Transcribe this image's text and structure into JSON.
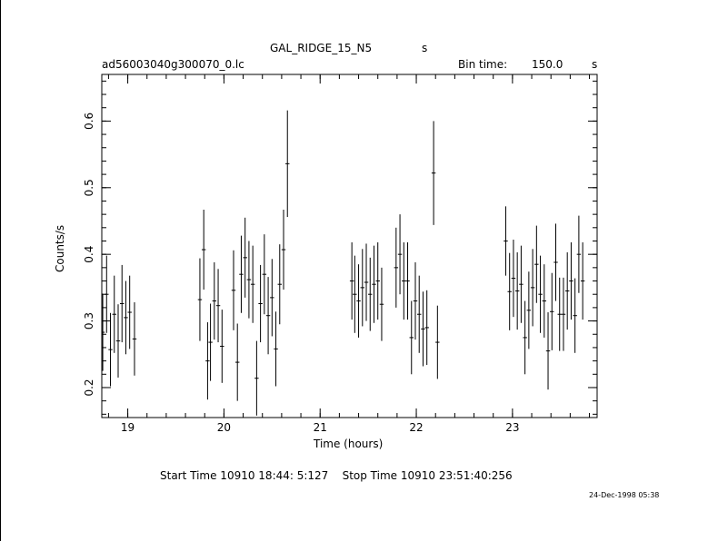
{
  "header": {
    "object": "GAL_RIDGE_15_N5",
    "object_unit": "s",
    "filename": "ad56003040g300070_0.lc",
    "bin_label": "Bin time:",
    "bin_value": "150.0",
    "bin_unit": "s"
  },
  "footer": {
    "times": "Start Time 10910 18:44: 5:127    Stop Time 10910 23:51:40:256",
    "stamp": "24-Dec-1998 05:38"
  },
  "chart_data": {
    "type": "scatter",
    "xlabel": "Time (hours)",
    "ylabel": "Counts/s",
    "xlim": [
      18.73,
      23.88
    ],
    "ylim": [
      0.155,
      0.67
    ],
    "xticks": [
      19,
      20,
      21,
      22,
      23
    ],
    "yticks": [
      0.2,
      0.3,
      0.4,
      0.5,
      0.6
    ],
    "xerr": 0.021,
    "series": [
      {
        "points": [
          [
            18.74,
            0.283,
            0.058
          ],
          [
            18.78,
            0.34,
            0.058
          ],
          [
            18.82,
            0.257,
            0.055
          ],
          [
            18.86,
            0.31,
            0.058
          ],
          [
            18.9,
            0.27,
            0.055
          ],
          [
            18.94,
            0.326,
            0.058
          ],
          [
            18.98,
            0.305,
            0.055
          ],
          [
            19.02,
            0.313,
            0.055
          ],
          [
            19.07,
            0.273,
            0.055
          ],
          [
            19.75,
            0.332,
            0.062
          ],
          [
            19.79,
            0.407,
            0.06
          ],
          [
            19.83,
            0.24,
            0.058
          ],
          [
            19.86,
            0.268,
            0.058
          ],
          [
            19.9,
            0.33,
            0.058
          ],
          [
            19.94,
            0.323,
            0.055
          ],
          [
            19.98,
            0.262,
            0.055
          ],
          [
            20.1,
            0.346,
            0.06
          ],
          [
            20.14,
            0.238,
            0.058
          ],
          [
            20.18,
            0.37,
            0.058
          ],
          [
            20.22,
            0.395,
            0.06
          ],
          [
            20.26,
            0.362,
            0.058
          ],
          [
            20.3,
            0.355,
            0.058
          ],
          [
            20.34,
            0.214,
            0.056
          ],
          [
            20.38,
            0.326,
            0.058
          ],
          [
            20.42,
            0.37,
            0.06
          ],
          [
            20.46,
            0.308,
            0.058
          ],
          [
            20.5,
            0.335,
            0.058
          ],
          [
            20.54,
            0.258,
            0.056
          ],
          [
            20.58,
            0.355,
            0.06
          ],
          [
            20.62,
            0.407,
            0.06
          ],
          [
            20.66,
            0.536,
            0.08
          ],
          [
            21.33,
            0.36,
            0.058
          ],
          [
            21.36,
            0.34,
            0.058
          ],
          [
            21.4,
            0.33,
            0.055
          ],
          [
            21.44,
            0.35,
            0.058
          ],
          [
            21.48,
            0.358,
            0.058
          ],
          [
            21.52,
            0.34,
            0.055
          ],
          [
            21.56,
            0.355,
            0.058
          ],
          [
            21.6,
            0.36,
            0.058
          ],
          [
            21.64,
            0.325,
            0.055
          ],
          [
            21.79,
            0.38,
            0.06
          ],
          [
            21.83,
            0.4,
            0.06
          ],
          [
            21.87,
            0.36,
            0.058
          ],
          [
            21.91,
            0.36,
            0.058
          ],
          [
            21.95,
            0.275,
            0.055
          ],
          [
            21.99,
            0.33,
            0.058
          ],
          [
            22.03,
            0.31,
            0.058
          ],
          [
            22.07,
            0.288,
            0.056
          ],
          [
            22.11,
            0.29,
            0.056
          ],
          [
            22.18,
            0.522,
            0.078
          ],
          [
            22.22,
            0.268,
            0.055
          ],
          [
            22.93,
            0.42,
            0.052
          ],
          [
            22.97,
            0.344,
            0.058
          ],
          [
            23.01,
            0.364,
            0.058
          ],
          [
            23.05,
            0.345,
            0.058
          ],
          [
            23.09,
            0.355,
            0.058
          ],
          [
            23.13,
            0.275,
            0.055
          ],
          [
            23.17,
            0.316,
            0.058
          ],
          [
            23.21,
            0.35,
            0.058
          ],
          [
            23.25,
            0.385,
            0.058
          ],
          [
            23.29,
            0.34,
            0.058
          ],
          [
            23.33,
            0.33,
            0.055
          ],
          [
            23.37,
            0.255,
            0.058
          ],
          [
            23.41,
            0.314,
            0.058
          ],
          [
            23.45,
            0.388,
            0.058
          ],
          [
            23.49,
            0.31,
            0.055
          ],
          [
            23.53,
            0.31,
            0.055
          ],
          [
            23.57,
            0.345,
            0.058
          ],
          [
            23.61,
            0.36,
            0.058
          ],
          [
            23.65,
            0.308,
            0.056
          ],
          [
            23.69,
            0.4,
            0.058
          ],
          [
            23.73,
            0.36,
            0.058
          ]
        ]
      }
    ]
  }
}
